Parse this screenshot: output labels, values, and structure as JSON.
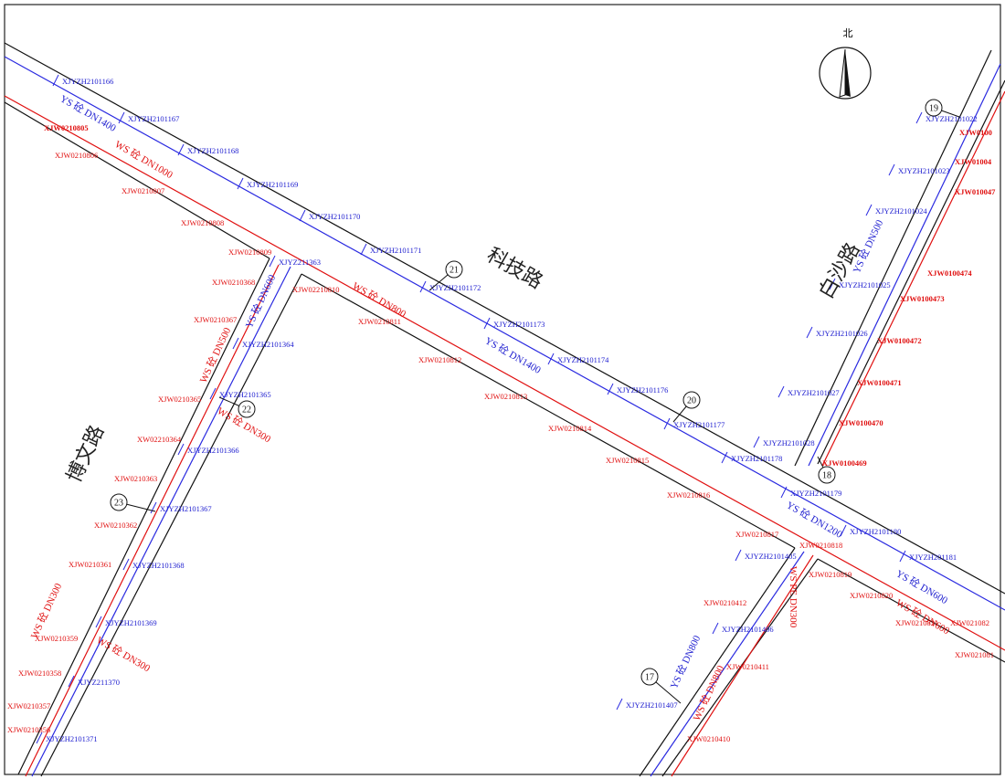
{
  "north_label": "北",
  "road_names": [
    "科技路",
    "白沙路",
    "博文路"
  ],
  "markers": [
    "19",
    "21",
    "20",
    "18",
    "22",
    "23",
    "17"
  ],
  "blue_labels": [
    "XJYZH2101166",
    "XJYZH2101167",
    "XJYZH2101168",
    "XJYZH2101169",
    "XJYZH2101170",
    "XJYZH2101171",
    "XJYZH2101172",
    "XJYZH2101173",
    "XJYZH2101174",
    "XJYZH2101176",
    "XJYZH2101177",
    "XJYZH2101178",
    "XJYZH2101179",
    "XJYZH2101180",
    "XJYZH201181",
    "XJYZH2101022",
    "XJYZH2101023",
    "XJYZH2101024",
    "XJYZH2101025",
    "XJYZH2101026",
    "XJYZH2101027",
    "XJYZH2101028",
    "XJYZ211363",
    "XJYZH2101364",
    "XJYZH2101365",
    "XJYZH2101366",
    "XJYZH2101367",
    "XJYZH2101368",
    "XJYZH2101369",
    "XJYZ211370",
    "XJYZH2101371",
    "XJYZH2101405",
    "XJYZH2101406",
    "XJYZH2101407"
  ],
  "red_labels": [
    "XJW0210805",
    "XJW0210806",
    "XJW0210807",
    "XJW0210808",
    "XJW0210809",
    "XJW0210368",
    "XJW02210810",
    "XJW0210367",
    "XJW0210811",
    "XJW0210812",
    "XJW0210365",
    "XJW0210813",
    "XW02210364",
    "XJW0210814",
    "XJW0210363",
    "XJW0210815",
    "XJW0210816",
    "XJW0210362",
    "XJW0210817",
    "XJW0210818",
    "XJW0210361",
    "XJW0210819",
    "XJW0210412",
    "XJW0210820",
    "XJW0210359",
    "XJW0210821",
    "XJW021082",
    "XJW0210411",
    "XJW0210358",
    "XJW021081",
    "XJW0210357",
    "XJW0210356",
    "XJW0210410",
    "XJW0100",
    "XJW01004",
    "XJW010047",
    "XJW0100474",
    "XJW0100473",
    "XJW0100472",
    "XJW0100471",
    "XJW0100470",
    "XJW0100469"
  ],
  "pipe_labels": [
    "YS 砼 DN1400",
    "WS 砼 DN1000",
    "WS 砼 DN800",
    "YS 砼 DN1400",
    "YS 砼 DN1200",
    "YS 砼 DN600",
    "WS 砼 DN600",
    "YS 砼 DN600",
    "WS 砼 DN500",
    "WS 砼 DN300",
    "WS 砼 DN300",
    "WS 砼 DN300",
    "YS 砼 DN500",
    "YS 砼 DN800",
    "WS 砼 DN800",
    "WS PE DN300"
  ]
}
